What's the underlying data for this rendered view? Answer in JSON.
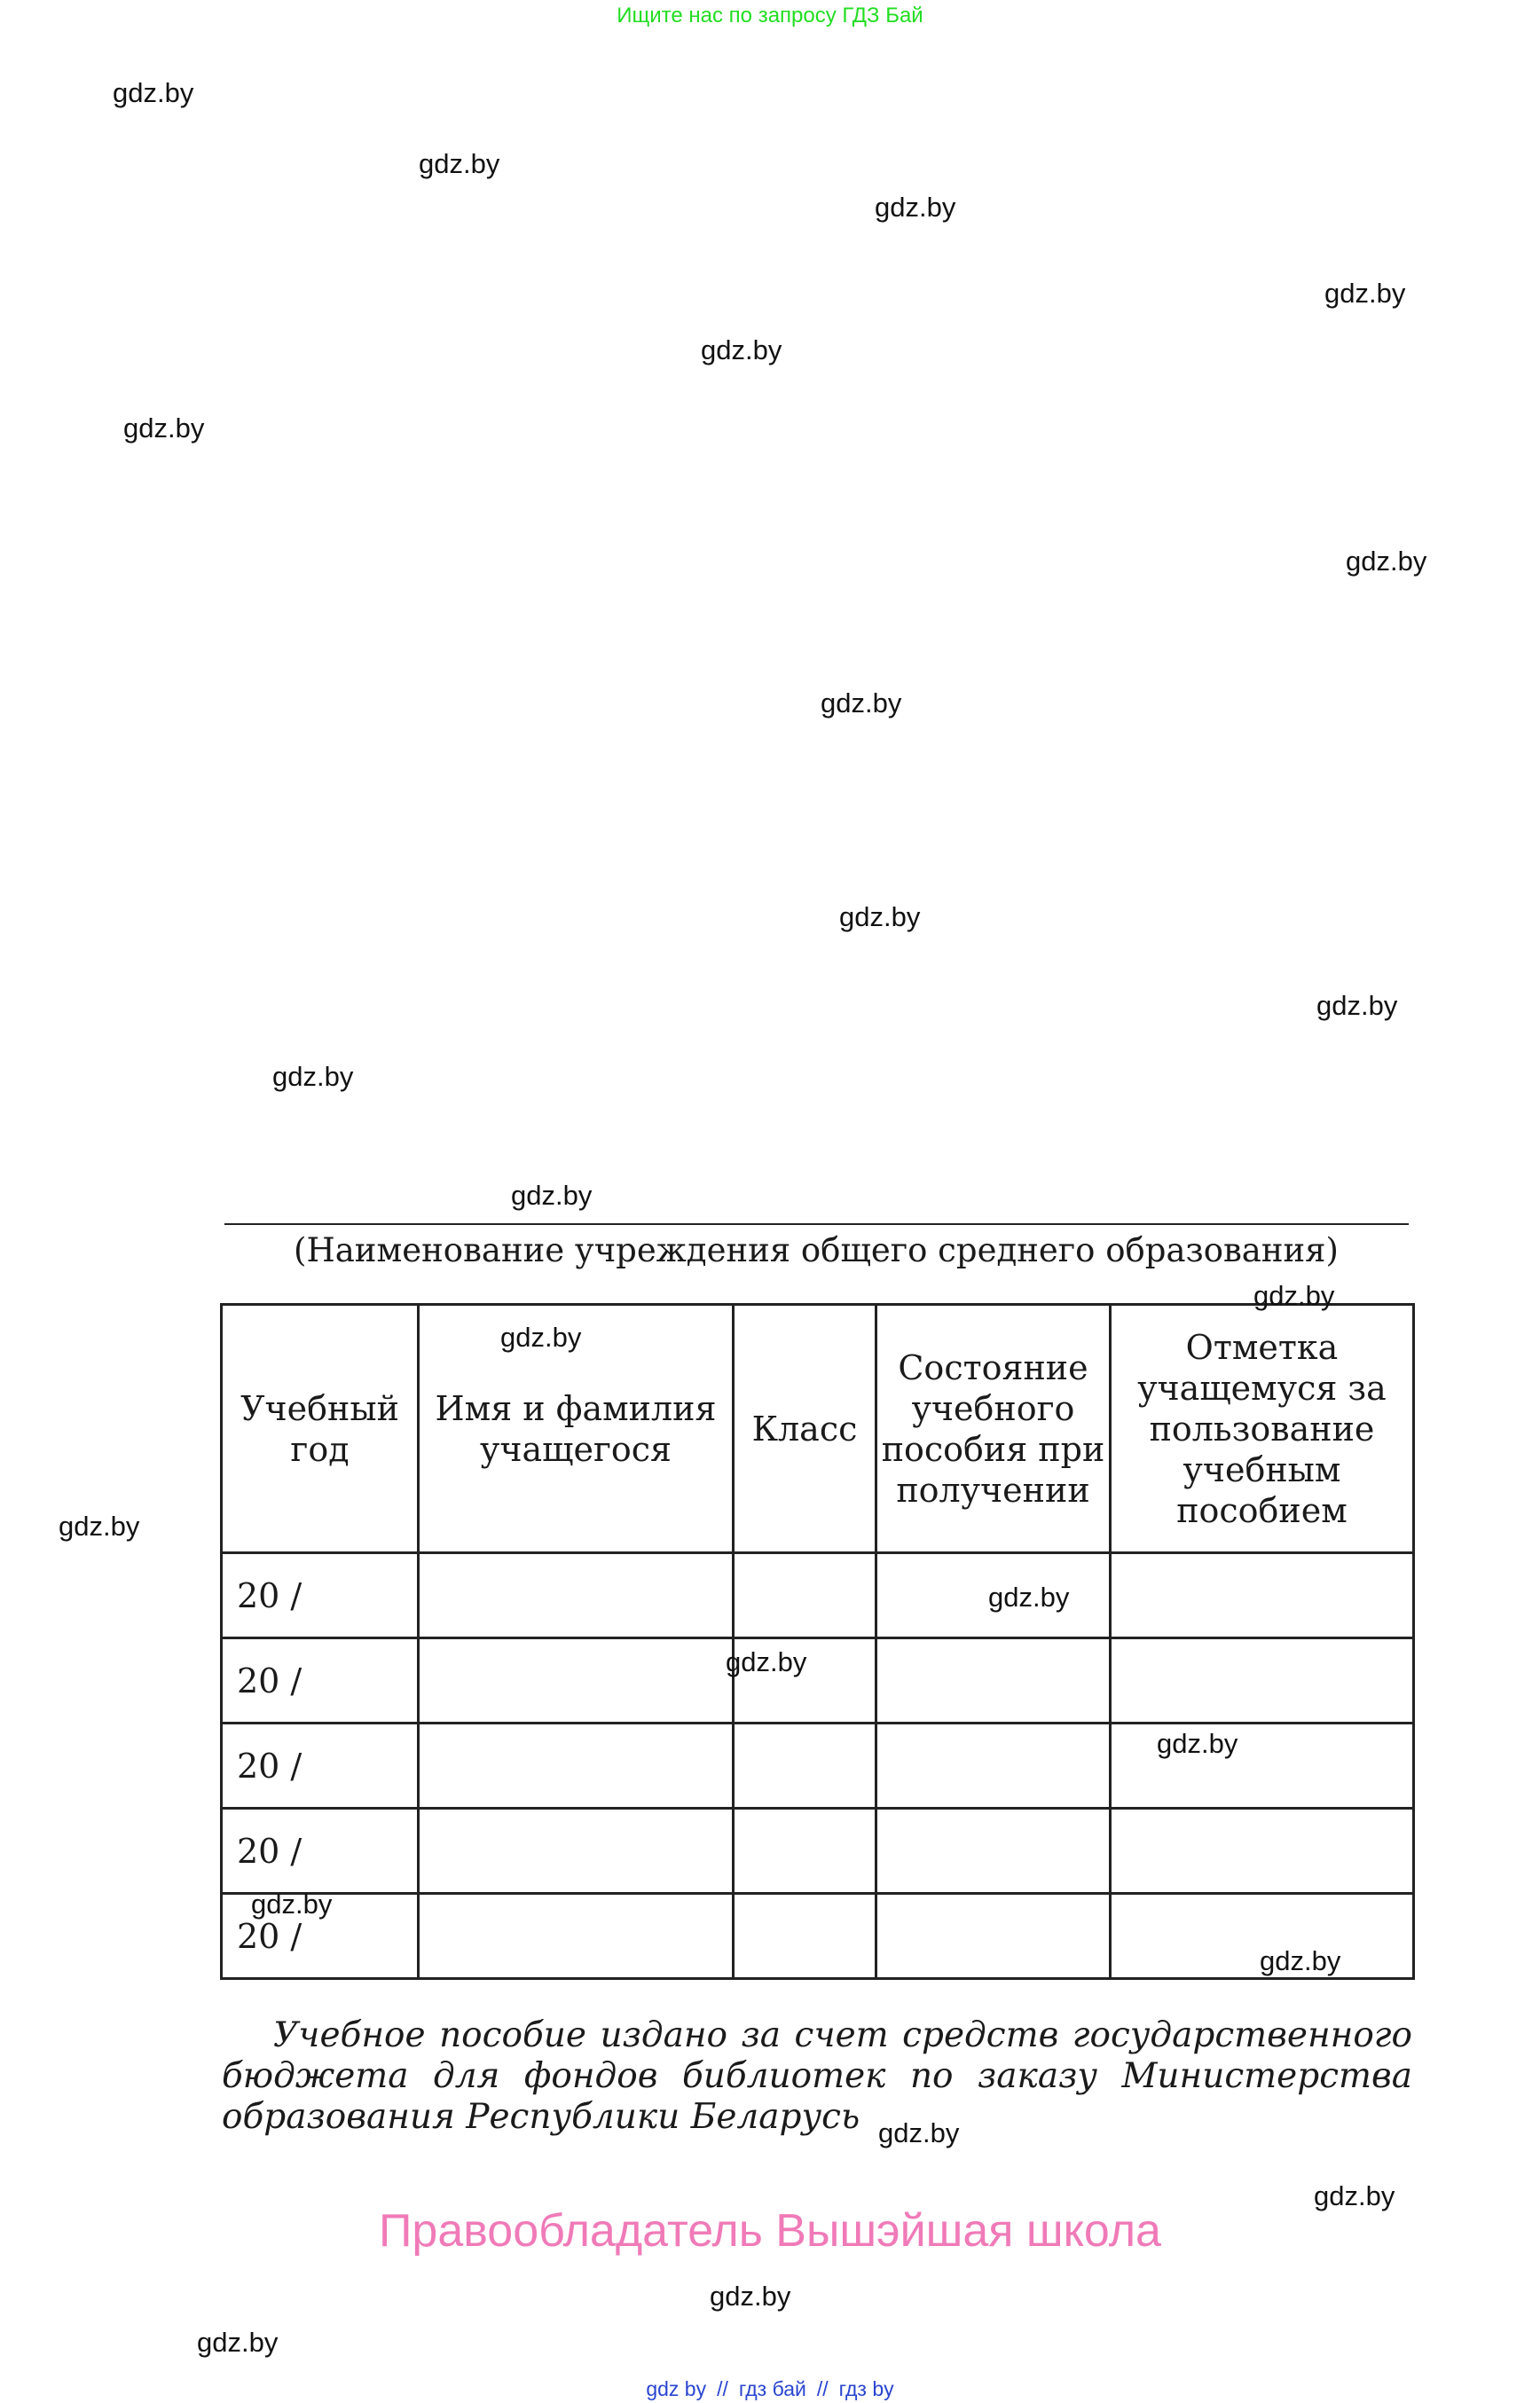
{
  "top_banner": "Ищите нас по запросу ГДЗ Бай",
  "watermarks": [
    "gdz.by",
    "gdz.by",
    "gdz.by",
    "gdz.by",
    "gdz.by",
    "gdz.by",
    "gdz.by",
    "gdz.by",
    "gdz.by",
    "gdz.by",
    "gdz.by",
    "gdz.by",
    "gdz.by",
    "gdz.by",
    "gdz.by",
    "gdz.by",
    "gdz.by",
    "gdz.by",
    "gdz.by",
    "gdz.by",
    "gdz.by",
    "gdz.by",
    "gdz.by",
    "gdz.by"
  ],
  "institution_caption": "(Наименование учреждения общего среднего образования)",
  "table": {
    "headers": [
      "Учебный год",
      "Имя и фамилия учащегося",
      "Класс",
      "Состояние учебного пособия при получении",
      "Отметка учащемуся за пользование учебным пособием"
    ],
    "rows": [
      [
        "20 /",
        "",
        "",
        "",
        ""
      ],
      [
        "20 /",
        "",
        "",
        "",
        ""
      ],
      [
        "20 /",
        "",
        "",
        "",
        ""
      ],
      [
        "20 /",
        "",
        "",
        "",
        ""
      ],
      [
        "20 /",
        "",
        "",
        "",
        ""
      ]
    ]
  },
  "funding_note": "Учебное пособие издано за счет средств государственного бюджета для фондов библиотек по заказу Министерства образования Республики Беларусь",
  "rights_holder": "Правообладатель Вышэйшая школа",
  "footer_links": [
    "gdz by",
    "//",
    "гдз бай",
    "//",
    "гдз by"
  ],
  "colors": {
    "banner": "#22dd22",
    "rights": "#f07ab8",
    "footer_links": "#2a45d0"
  }
}
